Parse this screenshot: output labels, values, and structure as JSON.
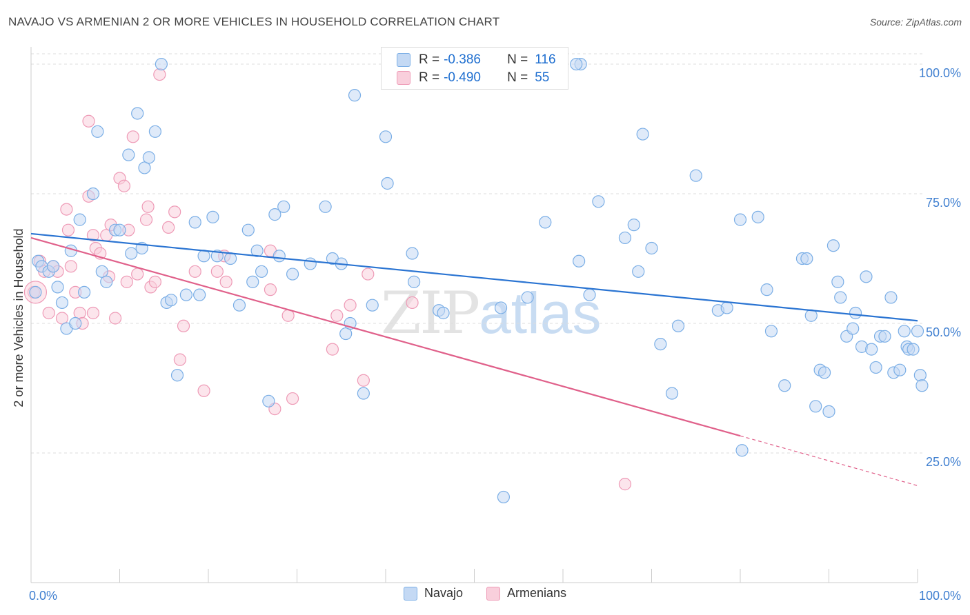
{
  "header": {
    "title": "NAVAJO VS ARMENIAN 2 OR MORE VEHICLES IN HOUSEHOLD CORRELATION CHART",
    "source": "Source: ZipAtlas.com"
  },
  "watermark": {
    "zip": "ZIP",
    "atlas": "atlas"
  },
  "stats_legend": {
    "rows": [
      {
        "series": "Navajo",
        "r_label": "R =",
        "r_value": "-0.386",
        "n_label": "N =",
        "n_value": "116",
        "color": "#a8c8f0"
      },
      {
        "series": "Armenians",
        "r_label": "R =",
        "r_value": "-0.490",
        "n_label": "N =",
        "n_value": "55",
        "color": "#f7b8cc"
      }
    ]
  },
  "colors": {
    "navajo_fill": "#c4d9f4",
    "navajo_stroke": "#7aaee6",
    "navajo_line": "#2a74d2",
    "armenian_fill": "#f9cfdc",
    "armenian_stroke": "#ee9ab6",
    "armenian_line": "#e0608a",
    "tick_label": "#3f7fd0",
    "grid": "#dddddd"
  },
  "chart_data": {
    "type": "scatter",
    "title": "NAVAJO VS ARMENIAN 2 OR MORE VEHICLES IN HOUSEHOLD CORRELATION CHART",
    "xlabel": "",
    "ylabel": "2 or more Vehicles in Household",
    "xlim": [
      0,
      100
    ],
    "ylim": [
      0,
      102
    ],
    "x_tick_labels": [
      "0.0%",
      "100.0%"
    ],
    "y_ticks": [
      25,
      50,
      75,
      100
    ],
    "y_tick_labels": [
      "25.0%",
      "50.0%",
      "75.0%",
      "100.0%"
    ],
    "grid": true,
    "legend": [
      "Navajo",
      "Armenians"
    ],
    "series": [
      {
        "name": "Navajo",
        "trend": {
          "x0": 0,
          "y0": 67.3,
          "x1": 100,
          "y1": 50.5
        },
        "points": [
          [
            0.5,
            56
          ],
          [
            0.8,
            62
          ],
          [
            1.2,
            61
          ],
          [
            2,
            60
          ],
          [
            2.5,
            61
          ],
          [
            3,
            57
          ],
          [
            3.5,
            54
          ],
          [
            4,
            49
          ],
          [
            4.5,
            64
          ],
          [
            5,
            50
          ],
          [
            5.5,
            70
          ],
          [
            6,
            56
          ],
          [
            7,
            75
          ],
          [
            7.5,
            87
          ],
          [
            8,
            60
          ],
          [
            8.5,
            58
          ],
          [
            9.5,
            68
          ],
          [
            10,
            68
          ],
          [
            11,
            82.5
          ],
          [
            11.3,
            63.5
          ],
          [
            12,
            90.5
          ],
          [
            12.5,
            64.5
          ],
          [
            12.8,
            80
          ],
          [
            13.3,
            82
          ],
          [
            14,
            87
          ],
          [
            14.7,
            100
          ],
          [
            15.3,
            54
          ],
          [
            15.8,
            54.5
          ],
          [
            16.5,
            40
          ],
          [
            17.5,
            55.5
          ],
          [
            18.5,
            69.5
          ],
          [
            19,
            55.5
          ],
          [
            19.5,
            63
          ],
          [
            20.5,
            70.5
          ],
          [
            21,
            63
          ],
          [
            22.5,
            62.5
          ],
          [
            23.5,
            53.5
          ],
          [
            24.5,
            68
          ],
          [
            25,
            58
          ],
          [
            25.5,
            64
          ],
          [
            26,
            60
          ],
          [
            26.8,
            35
          ],
          [
            27.5,
            71
          ],
          [
            28,
            63
          ],
          [
            28.5,
            72.5
          ],
          [
            29.5,
            59.5
          ],
          [
            31.5,
            61.5
          ],
          [
            33.2,
            72.5
          ],
          [
            34,
            62.5
          ],
          [
            35,
            61.5
          ],
          [
            35.5,
            48
          ],
          [
            36,
            50
          ],
          [
            36.5,
            94
          ],
          [
            37.5,
            36.5
          ],
          [
            38.5,
            53.5
          ],
          [
            40,
            86
          ],
          [
            40.2,
            77
          ],
          [
            43,
            63.5
          ],
          [
            43.2,
            58
          ],
          [
            46,
            52.5
          ],
          [
            46.5,
            52
          ],
          [
            53,
            53
          ],
          [
            53.3,
            16.5
          ],
          [
            56,
            55
          ],
          [
            58,
            69.5
          ],
          [
            62,
            100
          ],
          [
            61.5,
            100
          ],
          [
            61.8,
            62
          ],
          [
            63,
            55.5
          ],
          [
            64,
            73.5
          ],
          [
            67,
            66.5
          ],
          [
            68,
            69
          ],
          [
            68.5,
            60
          ],
          [
            69,
            86.5
          ],
          [
            70,
            64.5
          ],
          [
            71,
            46
          ],
          [
            72.3,
            36.5
          ],
          [
            73,
            49.5
          ],
          [
            75,
            78.5
          ],
          [
            77.5,
            52.5
          ],
          [
            78.5,
            53
          ],
          [
            80,
            70
          ],
          [
            80.2,
            25.5
          ],
          [
            82,
            70.5
          ],
          [
            83,
            56.5
          ],
          [
            83.5,
            48.5
          ],
          [
            85,
            38
          ],
          [
            87,
            62.5
          ],
          [
            87.5,
            62.5
          ],
          [
            88,
            51.5
          ],
          [
            88.5,
            34
          ],
          [
            89,
            41
          ],
          [
            89.5,
            40.5
          ],
          [
            90,
            33
          ],
          [
            90.5,
            65
          ],
          [
            91,
            58
          ],
          [
            91.3,
            55
          ],
          [
            92,
            47.5
          ],
          [
            92.7,
            49
          ],
          [
            93,
            52
          ],
          [
            93.7,
            45.5
          ],
          [
            94.2,
            59
          ],
          [
            94.8,
            45
          ],
          [
            95.3,
            41.5
          ],
          [
            95.8,
            47.5
          ],
          [
            96.3,
            47.5
          ],
          [
            97,
            55
          ],
          [
            97.3,
            40.5
          ],
          [
            98,
            41
          ],
          [
            98.5,
            48.5
          ],
          [
            98.8,
            45.5
          ],
          [
            99,
            45
          ],
          [
            99.5,
            45
          ],
          [
            100,
            48.5
          ],
          [
            100.3,
            40
          ],
          [
            100.5,
            38
          ]
        ]
      },
      {
        "name": "Armenians",
        "trend": {
          "x0": 0,
          "y0": 66.5,
          "x1": 80,
          "y1": 28.3,
          "dash_x1": 100,
          "dash_y1": 18.7
        },
        "points": [
          [
            0.3,
            56
          ],
          [
            1,
            62
          ],
          [
            1.5,
            60
          ],
          [
            2,
            52
          ],
          [
            2.5,
            61
          ],
          [
            3,
            60
          ],
          [
            3.5,
            51
          ],
          [
            4,
            72
          ],
          [
            4.2,
            68
          ],
          [
            4.5,
            61
          ],
          [
            5,
            56
          ],
          [
            5.5,
            52
          ],
          [
            5.8,
            50
          ],
          [
            6.5,
            74.5
          ],
          [
            6.5,
            89
          ],
          [
            7,
            52
          ],
          [
            7,
            67
          ],
          [
            7.3,
            64.5
          ],
          [
            7.8,
            63.5
          ],
          [
            8.5,
            67
          ],
          [
            8.8,
            59
          ],
          [
            9,
            69
          ],
          [
            9.5,
            51
          ],
          [
            10,
            78
          ],
          [
            10.5,
            76.5
          ],
          [
            10.8,
            58
          ],
          [
            11,
            68
          ],
          [
            11.5,
            86
          ],
          [
            12,
            59.5
          ],
          [
            13,
            70
          ],
          [
            13.2,
            72.5
          ],
          [
            13.5,
            57
          ],
          [
            14,
            58
          ],
          [
            14.5,
            98
          ],
          [
            15.5,
            68.5
          ],
          [
            16.2,
            71.5
          ],
          [
            16.8,
            43
          ],
          [
            17.2,
            49.5
          ],
          [
            18.5,
            60
          ],
          [
            19.5,
            37
          ],
          [
            21,
            60
          ],
          [
            21.8,
            63
          ],
          [
            22,
            58
          ],
          [
            27,
            64
          ],
          [
            27,
            56.5
          ],
          [
            27.5,
            33.5
          ],
          [
            29,
            51.5
          ],
          [
            29.5,
            35.5
          ],
          [
            34,
            45
          ],
          [
            34.5,
            51.5
          ],
          [
            36,
            53.5
          ],
          [
            37.5,
            39
          ],
          [
            38,
            59.5
          ],
          [
            43,
            54
          ],
          [
            67,
            19
          ]
        ]
      }
    ]
  },
  "bottom_legend": [
    {
      "label": "Navajo",
      "color": "#a8c8f0"
    },
    {
      "label": "Armenians",
      "color": "#f7b8cc"
    }
  ]
}
